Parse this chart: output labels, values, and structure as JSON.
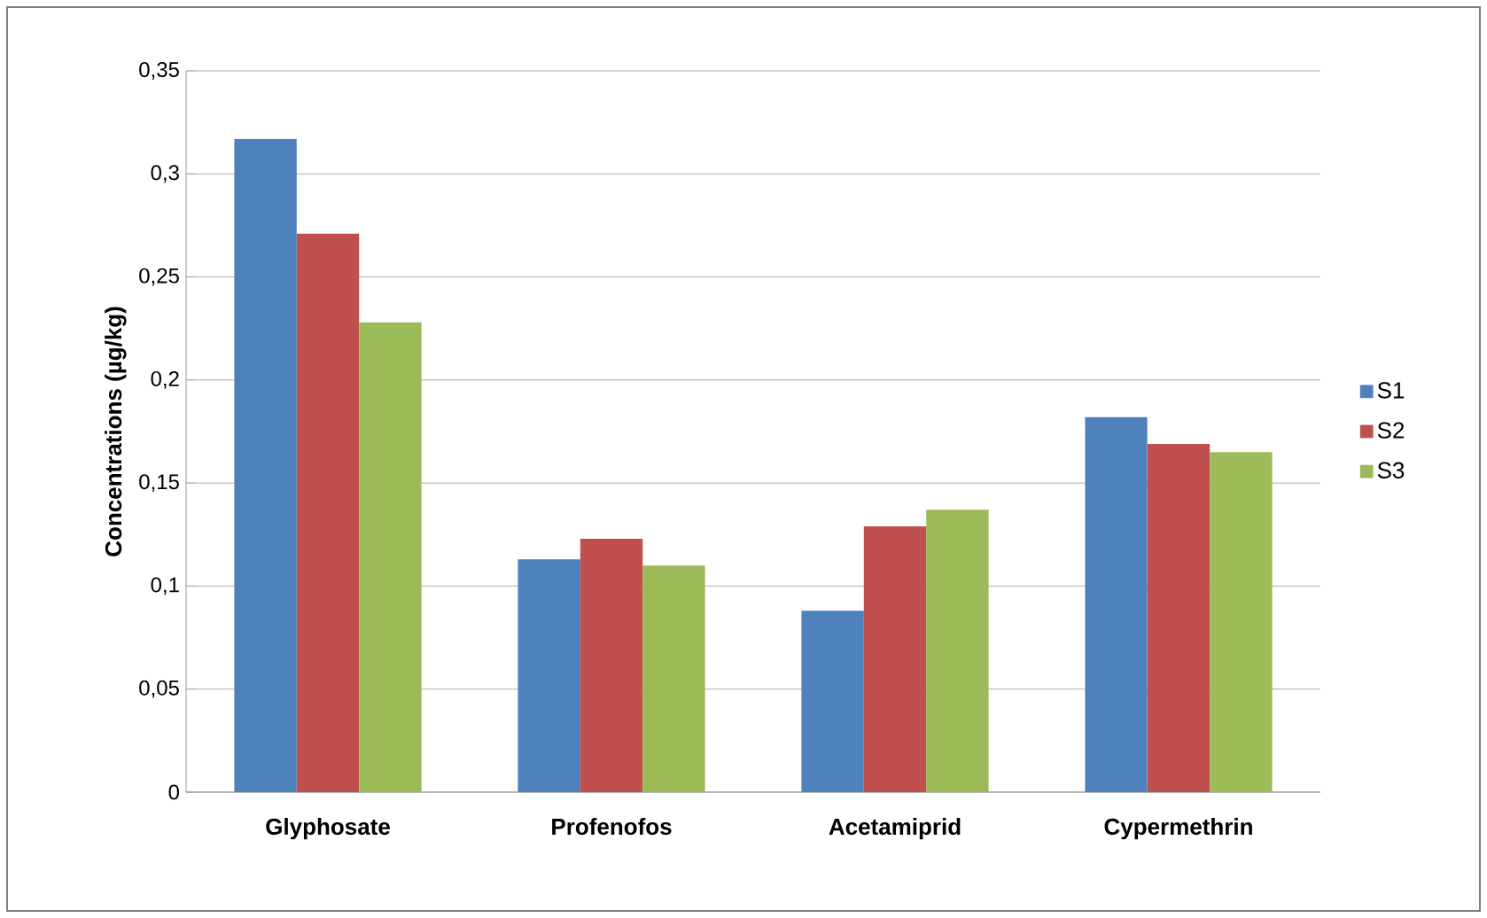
{
  "chart_data": {
    "type": "bar",
    "ylabel": "Concentrations  (µg/kg)",
    "categories": [
      "Glyphosate",
      "Profenofos",
      "Acetamiprid",
      "Cypermethrin"
    ],
    "series": [
      {
        "name": "S1",
        "color": "#4f81bd",
        "values": [
          0.317,
          0.113,
          0.088,
          0.182
        ]
      },
      {
        "name": "S2",
        "color": "#c0504d",
        "values": [
          0.271,
          0.123,
          0.129,
          0.169
        ]
      },
      {
        "name": "S3",
        "color": "#9bbb59",
        "values": [
          0.228,
          0.11,
          0.137,
          0.165
        ]
      }
    ],
    "ylim": [
      0,
      0.35
    ],
    "yticks": [
      {
        "value": 0,
        "label": "0"
      },
      {
        "value": 0.05,
        "label": "0,05"
      },
      {
        "value": 0.1,
        "label": "0,1"
      },
      {
        "value": 0.15,
        "label": "0,15"
      },
      {
        "value": 0.2,
        "label": "0,2"
      },
      {
        "value": 0.25,
        "label": "0,25"
      },
      {
        "value": 0.3,
        "label": "0,3"
      },
      {
        "value": 0.35,
        "label": "0,35"
      }
    ],
    "grid": "y",
    "legend": "right"
  }
}
